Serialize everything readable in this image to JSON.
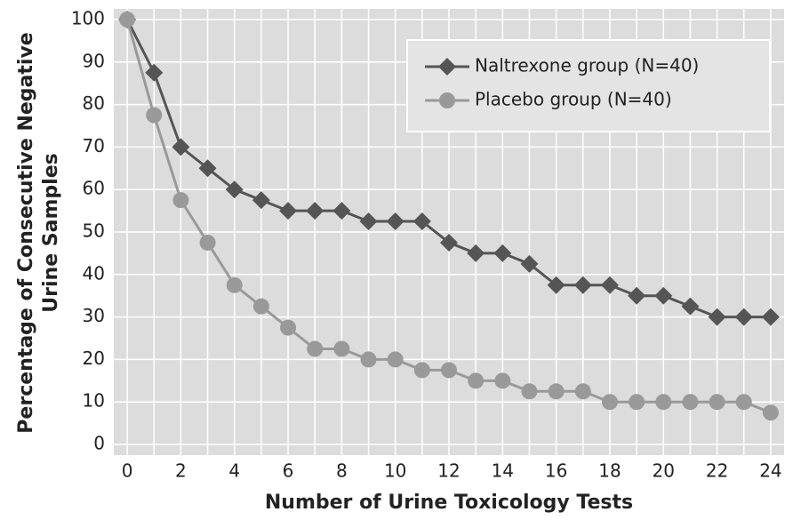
{
  "chart_data": {
    "type": "line",
    "x_label": "Number of Urine Toxicology Tests",
    "y_label": [
      "Percentage of Consecutive Negative",
      "Urine Samples"
    ],
    "x": [
      0,
      1,
      2,
      3,
      4,
      5,
      6,
      7,
      8,
      9,
      10,
      11,
      12,
      13,
      14,
      15,
      16,
      17,
      18,
      19,
      20,
      21,
      22,
      23,
      24
    ],
    "series": [
      {
        "name": "Naltrexone group (N=40)",
        "color": "#555555",
        "marker": "diamond",
        "values": [
          100,
          87.5,
          70,
          65,
          60,
          57.5,
          55,
          55,
          55,
          52.5,
          52.5,
          52.5,
          47.5,
          45,
          45,
          42.5,
          37.5,
          37.5,
          37.5,
          35,
          35,
          32.5,
          30,
          30,
          30
        ]
      },
      {
        "name": "Placebo group (N=40)",
        "color": "#999999",
        "marker": "circle",
        "values": [
          100,
          77.5,
          57.5,
          47.5,
          37.5,
          32.5,
          27.5,
          22.5,
          22.5,
          20,
          20,
          17.5,
          17.5,
          15,
          15,
          12.5,
          12.5,
          12.5,
          10,
          10,
          10,
          10,
          10,
          10,
          7.5
        ]
      }
    ],
    "xlim": [
      -0.5,
      24.5
    ],
    "ylim": [
      -2.5,
      102.5
    ],
    "xticks": [
      0,
      2,
      4,
      6,
      8,
      10,
      12,
      14,
      16,
      18,
      20,
      22,
      24
    ],
    "yticks": [
      0,
      10,
      20,
      30,
      40,
      50,
      60,
      70,
      80,
      90,
      100
    ],
    "grid": true,
    "legend": "upper right"
  }
}
